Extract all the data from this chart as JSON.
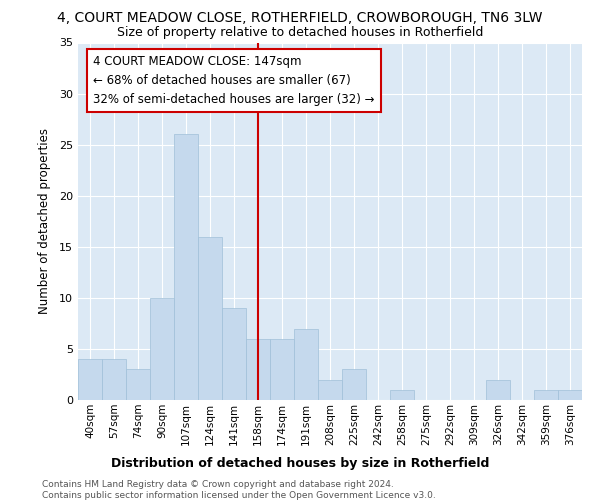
{
  "title": "4, COURT MEADOW CLOSE, ROTHERFIELD, CROWBOROUGH, TN6 3LW",
  "subtitle": "Size of property relative to detached houses in Rotherfield",
  "xlabel": "Distribution of detached houses by size in Rotherfield",
  "ylabel": "Number of detached properties",
  "bar_color": "#c5d9ed",
  "bar_edge_color": "#a0bfd8",
  "categories": [
    "40sqm",
    "57sqm",
    "74sqm",
    "90sqm",
    "107sqm",
    "124sqm",
    "141sqm",
    "158sqm",
    "174sqm",
    "191sqm",
    "208sqm",
    "225sqm",
    "242sqm",
    "258sqm",
    "275sqm",
    "292sqm",
    "309sqm",
    "326sqm",
    "342sqm",
    "359sqm",
    "376sqm"
  ],
  "values": [
    4,
    4,
    3,
    10,
    26,
    16,
    9,
    6,
    6,
    7,
    2,
    3,
    0,
    1,
    0,
    0,
    0,
    2,
    0,
    1,
    1
  ],
  "vline_pos": 7.0,
  "vline_color": "#cc0000",
  "annotation_line1": "4 COURT MEADOW CLOSE: 147sqm",
  "annotation_line2": "← 68% of detached houses are smaller (67)",
  "annotation_line3": "32% of semi-detached houses are larger (32) →",
  "annotation_box_color": "#ffffff",
  "annotation_box_edge": "#cc0000",
  "ylim": [
    0,
    35
  ],
  "yticks": [
    0,
    5,
    10,
    15,
    20,
    25,
    30,
    35
  ],
  "footer1": "Contains HM Land Registry data © Crown copyright and database right 2024.",
  "footer2": "Contains public sector information licensed under the Open Government Licence v3.0.",
  "fig_bg_color": "#ffffff",
  "plot_bg_color": "#dce9f5",
  "grid_color": "#ffffff"
}
